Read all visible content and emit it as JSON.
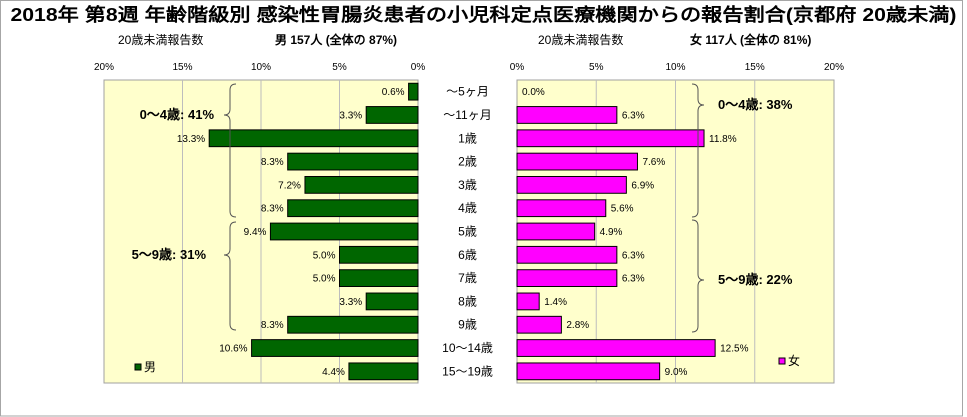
{
  "title": "2018年 第8週 年齢階級別 感染性胃腸炎患者の小児科定点医療機関からの報告割合(京都府 20歳未満)",
  "colors": {
    "plot_background": "#FFFFCC",
    "plot_border": "#A0A0A0",
    "gridline": "#BDBDBD",
    "bar_outline": "#000000"
  },
  "chart_data": [
    {
      "type": "bar",
      "orientation": "horizontal",
      "x_reversed": true,
      "header_label": "20歳未満報告数",
      "header_total": "男 157人 (全体の 87%)",
      "categories": [
        "～5ヶ月",
        "～11ヶ月",
        "1歳",
        "2歳",
        "3歳",
        "4歳",
        "5歳",
        "6歳",
        "7歳",
        "8歳",
        "9歳",
        "10～14歳",
        "15～19歳"
      ],
      "series": [
        {
          "name": "男",
          "color": "#006600",
          "values": [
            0.6,
            3.3,
            13.3,
            8.3,
            7.2,
            8.3,
            9.4,
            5.0,
            5.0,
            3.3,
            8.3,
            10.6,
            4.4
          ]
        }
      ],
      "xlim": [
        0,
        20
      ],
      "x_ticks": [
        0,
        5,
        10,
        15,
        20
      ],
      "unit": "%",
      "grid": true,
      "legend": "bottom-left",
      "annotations": [
        {
          "text": "0～4歳: 41%"
        },
        {
          "text": "5～9歳: 31%"
        }
      ]
    },
    {
      "type": "bar",
      "orientation": "horizontal",
      "x_reversed": false,
      "header_label": "20歳未満報告数",
      "header_total": "女 117人 (全体の 81%)",
      "categories": [
        "～5ヶ月",
        "～11ヶ月",
        "1歳",
        "2歳",
        "3歳",
        "4歳",
        "5歳",
        "6歳",
        "7歳",
        "8歳",
        "9歳",
        "10～14歳",
        "15～19歳"
      ],
      "series": [
        {
          "name": "女",
          "color": "#FF00FF",
          "values": [
            0.0,
            6.3,
            11.8,
            7.6,
            6.9,
            5.6,
            4.9,
            6.3,
            6.3,
            1.4,
            2.8,
            12.5,
            9.0
          ]
        }
      ],
      "xlim": [
        0,
        20
      ],
      "x_ticks": [
        0,
        5,
        10,
        15,
        20
      ],
      "unit": "%",
      "grid": true,
      "legend": "bottom-right",
      "annotations": [
        {
          "text": "0～4歳: 38%"
        },
        {
          "text": "5～9歳: 22%"
        }
      ]
    }
  ]
}
